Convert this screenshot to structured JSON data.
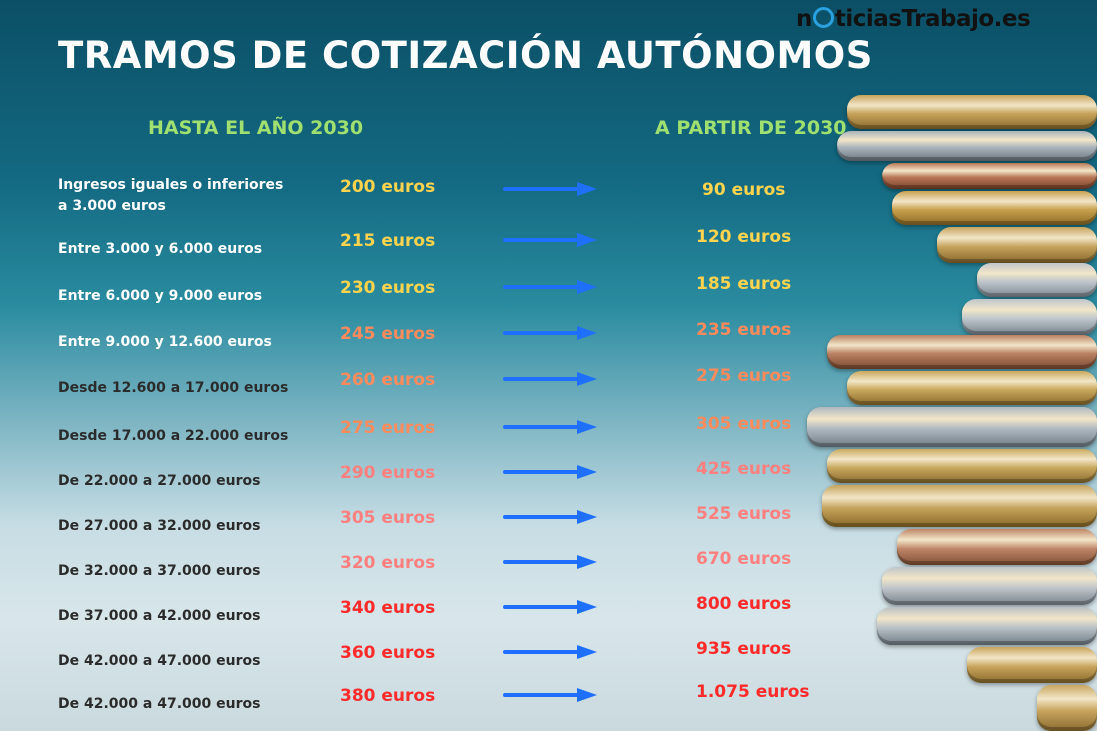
{
  "brand": {
    "prefix": "n",
    "suffix": "ticiasTrabajo.es"
  },
  "title": "TRAMOS DE COTIZACIÓN AUTÓNOMOS",
  "headers": {
    "before": "HASTA EL AÑO 2030",
    "after": "A PARTIR DE 2030"
  },
  "colors": {
    "title": "#ffffff",
    "header": "#9fe070",
    "arrow": "#1f6fff",
    "light_label": "#ffffff",
    "dark_label": "#2b2b2b",
    "yellow": "#ffd34d",
    "orange": "#ff8a5c",
    "salmon": "#ff7f7f",
    "red": "#ff2a2a"
  },
  "rows": [
    {
      "label": "Ingresos iguales o inferiores\na 3.000 euros",
      "before": "200 euros",
      "after": "90 euros"
    },
    {
      "label": "Entre 3.000 y 6.000 euros",
      "before": "215 euros",
      "after": "120 euros"
    },
    {
      "label": "Entre 6.000 y 9.000 euros",
      "before": "230 euros",
      "after": "185 euros"
    },
    {
      "label": "Entre 9.000 y 12.600 euros",
      "before": "245 euros",
      "after": "235 euros"
    },
    {
      "label": "Desde 12.600 a 17.000 euros",
      "before": "260 euros",
      "after": "275 euros"
    },
    {
      "label": "Desde 17.000 a 22.000 euros",
      "before": "275 euros",
      "after": "305 euros"
    },
    {
      "label": "De 22.000 a 27.000 euros",
      "before": "290 euros",
      "after": "425 euros"
    },
    {
      "label": "De 27.000 a 32.000 euros",
      "before": "305 euros",
      "after": "525 euros"
    },
    {
      "label": "De 32.000 a 37.000 euros",
      "before": "320 euros",
      "after": "670 euros"
    },
    {
      "label": "De 37.000 a 42.000 euros",
      "before": "340 euros",
      "after": "800 euros"
    },
    {
      "label": "De 42.000 a 47.000 euros",
      "before": "360 euros",
      "after": "935 euros"
    },
    {
      "label": "De 42.000 a 47.000 euros",
      "before": "380 euros",
      "after": "1.075 euros"
    }
  ]
}
